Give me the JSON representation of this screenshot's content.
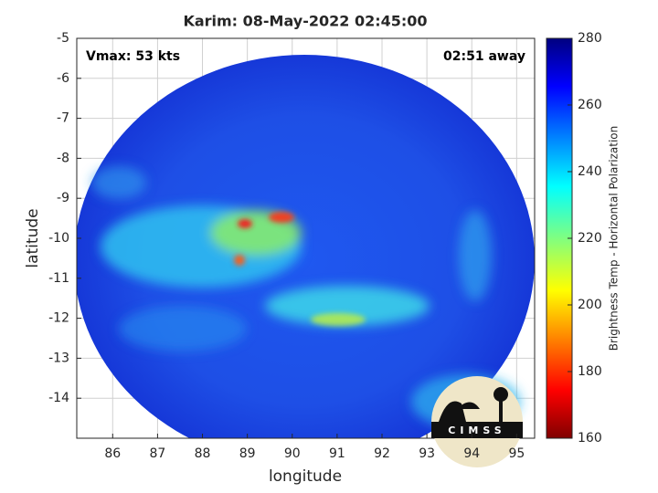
{
  "chart_data": {
    "type": "image",
    "title": "Karim: 08-May-2022 02:45:00",
    "annotations": [
      "Vmax: 53 kts",
      "02:51 away"
    ],
    "x_label": "longitude",
    "y_label": "latitude",
    "xlim": [
      85.2,
      95.4
    ],
    "xticks": [
      86,
      87,
      88,
      89,
      90,
      91,
      92,
      93,
      94,
      95
    ],
    "ylim": [
      -15,
      -5
    ],
    "yticks": [
      -5,
      -6,
      -7,
      -8,
      -9,
      -10,
      -11,
      -12,
      -13,
      -14
    ],
    "grid": true,
    "colorbar_label": "Brightness Temp - Horizontal Polarization",
    "clim": [
      160,
      280
    ],
    "cticks": [
      160,
      180,
      200,
      220,
      240,
      260,
      280
    ],
    "logo": "CIMSS"
  }
}
